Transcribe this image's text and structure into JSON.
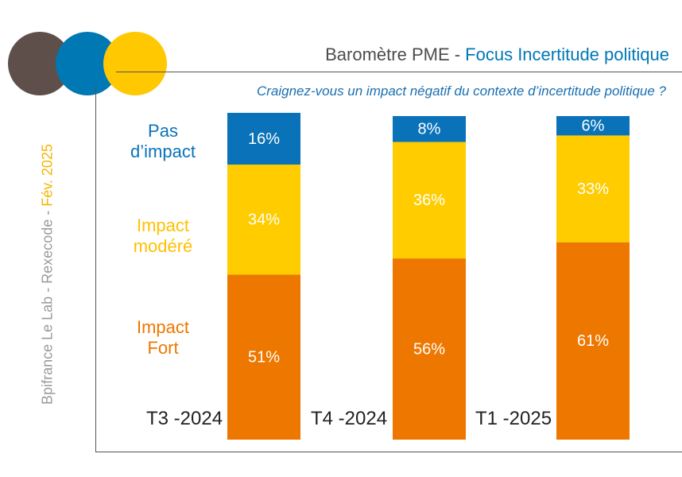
{
  "header": {
    "title_prefix": "Baromètre PME - ",
    "title_accent": "Focus Incertitude politique",
    "question": "Craignez-vous un impact négatif du contexte d’incertitude politique ?"
  },
  "sidebar_text": {
    "source": "Bpifrance Le Lab - Rexecode - ",
    "date": "Fév. 2025"
  },
  "colors": {
    "circle_dark": "#5e4f4b",
    "circle_blue": "#0078b4",
    "circle_yellow": "#ffc800",
    "pas_impact": "#0a72b8",
    "modere": "#ffcc00",
    "fort": "#ee7700"
  },
  "legend": {
    "pas_impact": [
      "Pas",
      "d’impact"
    ],
    "modere": [
      "Impact",
      "modéré"
    ],
    "fort": [
      "Impact",
      "Fort"
    ]
  },
  "chart_data": {
    "type": "bar",
    "stacked": true,
    "categories": [
      "T3 -2024",
      "T4 -2024",
      "T1 -2025"
    ],
    "series": [
      {
        "name": "Impact Fort",
        "values": [
          51,
          56,
          61
        ],
        "labels": [
          "51%",
          "56%",
          "61%"
        ]
      },
      {
        "name": "Impact modéré",
        "values": [
          34,
          36,
          33
        ],
        "labels": [
          "34%",
          "36%",
          "33%"
        ]
      },
      {
        "name": "Pas d’impact",
        "values": [
          16,
          8,
          6
        ],
        "labels": [
          "16%",
          "8%",
          "6%"
        ]
      }
    ],
    "title": "Baromètre PME - Focus Incertitude politique",
    "subtitle": "Craignez-vous un impact négatif du contexte d’incertitude politique ?",
    "ylim": [
      0,
      100
    ],
    "grid": false
  }
}
